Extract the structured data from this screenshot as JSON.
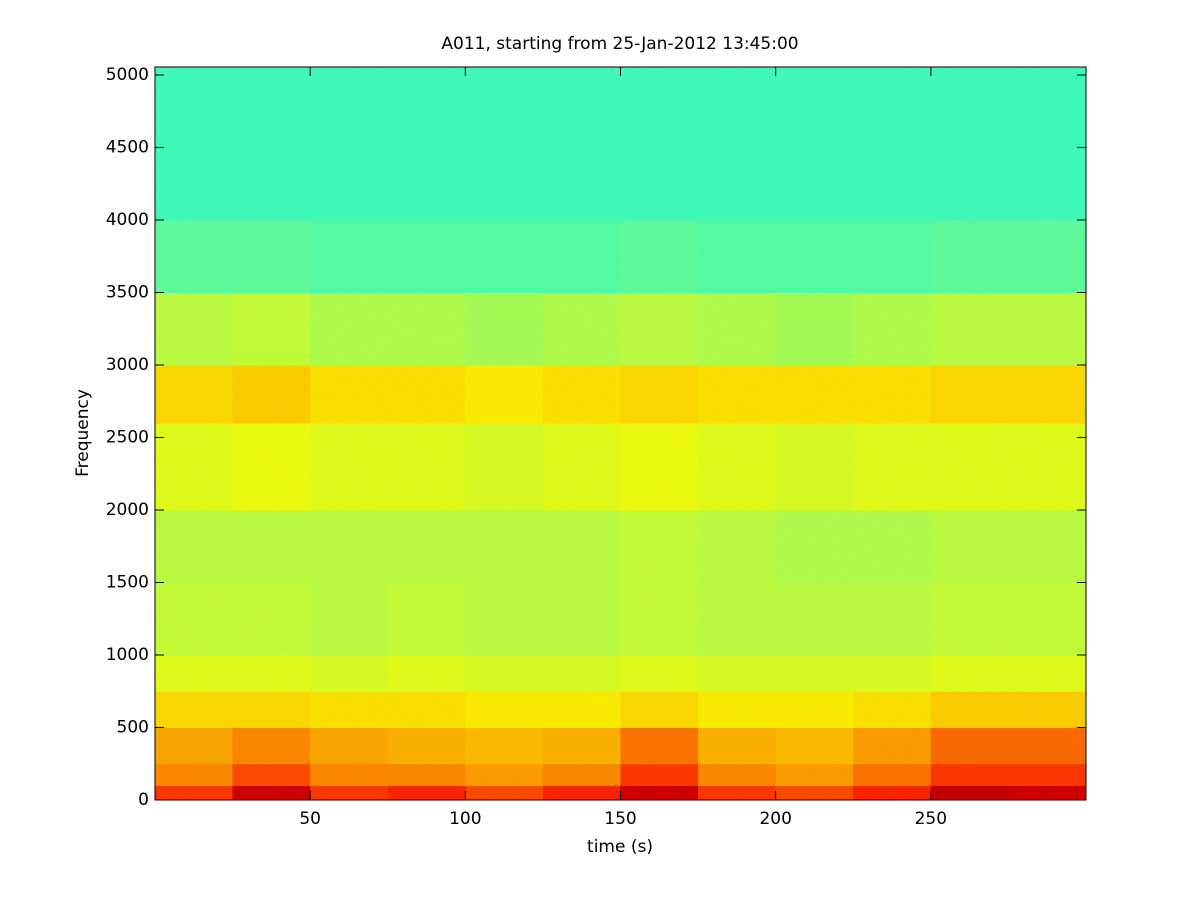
{
  "chart_data": {
    "type": "heatmap",
    "title": "A011, starting from 25-Jan-2012 13:45:00",
    "x_label": "time (s)",
    "y_label": "Frequency",
    "xlim": [
      0,
      300
    ],
    "ylim": [
      0,
      5055
    ],
    "xticks": [
      50,
      100,
      150,
      200,
      250
    ],
    "yticks": [
      0,
      500,
      1000,
      1500,
      2000,
      2500,
      3000,
      3500,
      4000,
      4500,
      5000
    ],
    "x_edges": [
      0,
      25,
      50,
      75,
      100,
      125,
      150,
      175,
      200,
      225,
      250,
      275,
      300
    ],
    "y_edges": [
      0,
      100,
      250,
      500,
      750,
      1000,
      1500,
      2000,
      2600,
      3000,
      3500,
      4000,
      5055
    ],
    "colormap": "jet",
    "zlim": [
      0,
      1
    ],
    "z": [
      [
        0.82,
        0.92,
        0.82,
        0.84,
        0.8,
        0.84,
        0.92,
        0.82,
        0.8,
        0.84,
        0.93,
        0.92
      ],
      [
        0.74,
        0.8,
        0.74,
        0.74,
        0.72,
        0.74,
        0.82,
        0.74,
        0.72,
        0.76,
        0.82,
        0.82
      ],
      [
        0.71,
        0.74,
        0.71,
        0.7,
        0.69,
        0.7,
        0.76,
        0.7,
        0.69,
        0.72,
        0.77,
        0.77
      ],
      [
        0.66,
        0.66,
        0.65,
        0.65,
        0.64,
        0.64,
        0.66,
        0.64,
        0.64,
        0.65,
        0.67,
        0.67
      ],
      [
        0.6,
        0.6,
        0.59,
        0.6,
        0.59,
        0.59,
        0.6,
        0.59,
        0.59,
        0.59,
        0.6,
        0.6
      ],
      [
        0.57,
        0.57,
        0.56,
        0.57,
        0.56,
        0.56,
        0.57,
        0.56,
        0.56,
        0.56,
        0.57,
        0.57
      ],
      [
        0.56,
        0.56,
        0.56,
        0.56,
        0.56,
        0.56,
        0.57,
        0.56,
        0.55,
        0.55,
        0.56,
        0.56
      ],
      [
        0.6,
        0.61,
        0.6,
        0.6,
        0.59,
        0.6,
        0.61,
        0.6,
        0.59,
        0.6,
        0.6,
        0.6
      ],
      [
        0.66,
        0.67,
        0.65,
        0.65,
        0.64,
        0.65,
        0.66,
        0.65,
        0.65,
        0.65,
        0.66,
        0.66
      ],
      [
        0.56,
        0.57,
        0.55,
        0.55,
        0.54,
        0.55,
        0.56,
        0.55,
        0.54,
        0.55,
        0.56,
        0.56
      ],
      [
        0.47,
        0.47,
        0.46,
        0.46,
        0.46,
        0.46,
        0.47,
        0.46,
        0.46,
        0.46,
        0.47,
        0.47
      ],
      [
        0.44,
        0.44,
        0.44,
        0.44,
        0.44,
        0.44,
        0.44,
        0.44,
        0.44,
        0.44,
        0.44,
        0.44
      ]
    ]
  }
}
